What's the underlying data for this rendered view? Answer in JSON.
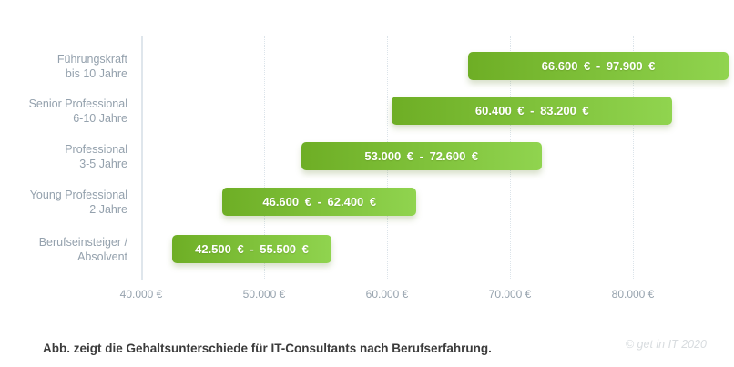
{
  "chart_data": {
    "type": "bar",
    "subtype": "horizontal_range_bars",
    "title": "",
    "xlabel": "",
    "ylabel": "",
    "unit": "EUR",
    "xlim": [
      40000,
      88000
    ],
    "grid": "vertical-dotted",
    "legend": "none",
    "bar_gradient": [
      "#6eae25",
      "#90d44f"
    ],
    "x_ticks": [
      {
        "value": 40000,
        "label": "40.000 €"
      },
      {
        "value": 50000,
        "label": "50.000 €"
      },
      {
        "value": 60000,
        "label": "60.000 €"
      },
      {
        "value": 70000,
        "label": "70.000 €"
      },
      {
        "value": 80000,
        "label": "80.000 €"
      }
    ],
    "rows": [
      {
        "label_line1": "Führungskraft",
        "label_line2": "bis 10 Jahre",
        "min": 66600,
        "max": 97900,
        "value_label": "66.600 € - 97.900 €"
      },
      {
        "label_line1": "Senior Professional",
        "label_line2": "6-10 Jahre",
        "min": 60400,
        "max": 83200,
        "value_label": "60.400 € - 83.200 €"
      },
      {
        "label_line1": "Professional",
        "label_line2": "3-5 Jahre",
        "min": 53000,
        "max": 72600,
        "value_label": "53.000 € - 72.600 €"
      },
      {
        "label_line1": "Young Professional",
        "label_line2": "2 Jahre",
        "min": 46600,
        "max": 62400,
        "value_label": "46.600 € - 62.400 €"
      },
      {
        "label_line1": "Berufseinsteiger /",
        "label_line2": "Absolvent",
        "min": 42500,
        "max": 55500,
        "value_label": "42.500 € - 55.500 €"
      }
    ]
  },
  "caption": {
    "text": "Abb. zeigt die Gehaltsunterschiede für IT-Consultants nach Berufserfahrung."
  },
  "credit": {
    "text": "© get in IT 2020"
  }
}
